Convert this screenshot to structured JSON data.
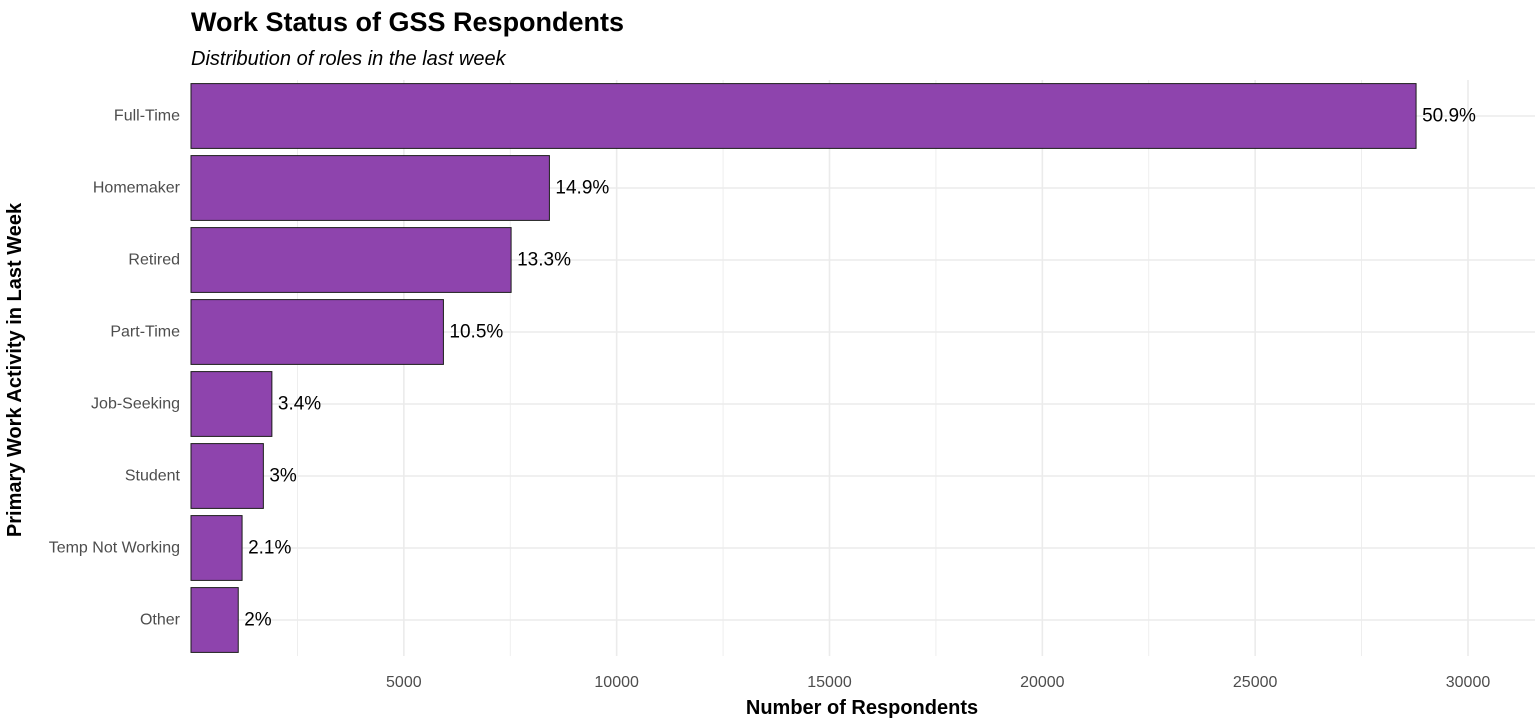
{
  "chart_data": {
    "type": "bar",
    "orientation": "horizontal",
    "title": "Work Status of GSS Respondents",
    "subtitle": "Distribution of roles in the last week",
    "xlabel": "Number of Respondents",
    "ylabel": "Primary Work Activity in Last Week",
    "categories": [
      "Full-Time",
      "Homemaker",
      "Retired",
      "Part-Time",
      "Job-Seeking",
      "Student",
      "Temp Not Working",
      "Other"
    ],
    "values": [
      28780,
      8420,
      7520,
      5930,
      1900,
      1700,
      1200,
      1110
    ],
    "labels": [
      "50.9%",
      "14.9%",
      "13.3%",
      "10.5%",
      "3.4%",
      "3%",
      "2.1%",
      "2%"
    ],
    "xticks": [
      5000,
      10000,
      15000,
      20000,
      25000,
      30000
    ],
    "xlim": [
      0,
      31700
    ],
    "grid": true,
    "legend": "none",
    "colors": {
      "bar_fill": "#8E44AD",
      "bar_stroke": "#1a1a1a"
    }
  }
}
